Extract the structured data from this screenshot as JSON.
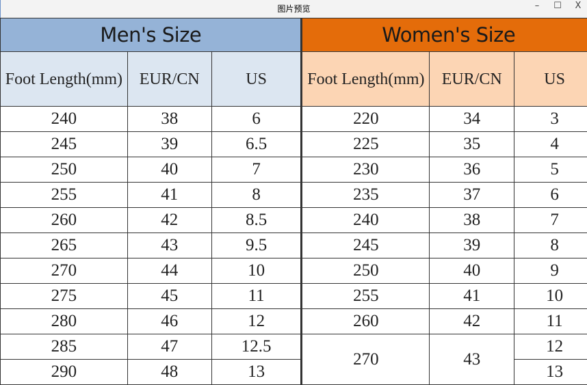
{
  "window": {
    "title": "图片预览",
    "minimize": "–",
    "maximize": "☐",
    "close": "X"
  },
  "colors": {
    "men_header": "#95b3d7",
    "men_subheader": "#dce6f1",
    "women_header": "#e46c0a",
    "women_subheader": "#fcd5b4"
  },
  "men": {
    "title": "Men's Size",
    "columns": [
      "Foot Length(mm)",
      "EUR/CN",
      "US"
    ],
    "rows": [
      [
        "240",
        "38",
        "6"
      ],
      [
        "245",
        "39",
        "6.5"
      ],
      [
        "250",
        "40",
        "7"
      ],
      [
        "255",
        "41",
        "8"
      ],
      [
        "260",
        "42",
        "8.5"
      ],
      [
        "265",
        "43",
        "9.5"
      ],
      [
        "270",
        "44",
        "10"
      ],
      [
        "275",
        "45",
        "11"
      ],
      [
        "280",
        "46",
        "12"
      ],
      [
        "285",
        "47",
        "12.5"
      ],
      [
        "290",
        "48",
        "13"
      ]
    ]
  },
  "women": {
    "title": "Women's Size",
    "columns": [
      "Foot Length(mm)",
      "EUR/CN",
      "US"
    ],
    "rows": [
      [
        "220",
        "34",
        "3"
      ],
      [
        "225",
        "35",
        "4"
      ],
      [
        "230",
        "36",
        "5"
      ],
      [
        "235",
        "37",
        "6"
      ],
      [
        "240",
        "38",
        "7"
      ],
      [
        "245",
        "39",
        "8"
      ],
      [
        "250",
        "40",
        "9"
      ],
      [
        "255",
        "41",
        "10"
      ],
      [
        "260",
        "42",
        "11"
      ],
      [
        "270",
        "43",
        "12"
      ],
      [
        "",
        "",
        "13"
      ]
    ]
  }
}
